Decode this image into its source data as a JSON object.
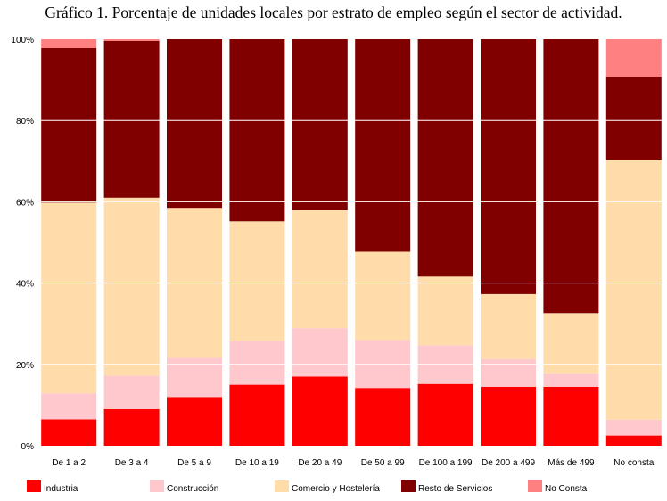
{
  "chart_data": {
    "type": "bar",
    "stacked": true,
    "percent": true,
    "title": "Gráfico 1. Porcentaje de unidades locales por estrato de empleo según el sector de actividad.",
    "categories": [
      "De 1 a 2",
      "De 3 a 4",
      "De 5 a 9",
      "De 10 a 19",
      "De 20 a 49",
      "De 50 a 99",
      "De 100 a 199",
      "De 200 a 499",
      "Más de 499",
      "No consta"
    ],
    "yticks": [
      "0%",
      "20%",
      "40%",
      "60%",
      "80%",
      "100%"
    ],
    "ylim": [
      0,
      100
    ],
    "grid": true,
    "legend_position": "bottom",
    "series": [
      {
        "name": "Industria",
        "color": "#ff0000",
        "values": [
          6.5,
          9,
          12,
          15,
          17,
          14.2,
          15.2,
          14.5,
          14.5,
          2.5
        ]
      },
      {
        "name": "Construcción",
        "color": "#ffc8cc",
        "values": [
          6.4,
          8.2,
          9.6,
          10.8,
          11.9,
          11.8,
          9.5,
          6.8,
          3.3,
          3.9
        ]
      },
      {
        "name": "Comercio y Hostelería",
        "color": "#ffdcaa",
        "values": [
          46.9,
          43.8,
          36.9,
          29.4,
          29,
          21.7,
          16.9,
          16,
          14.8,
          64
        ]
      },
      {
        "name": "Resto de Servicios",
        "color": "#800000",
        "values": [
          38,
          38.6,
          41.5,
          44.8,
          42.1,
          52.3,
          58.4,
          62.7,
          67.4,
          20.4
        ]
      },
      {
        "name": "No Consta",
        "color": "#ff8080",
        "values": [
          2.2,
          0.4,
          0,
          0,
          0,
          0,
          0,
          0,
          0,
          9.2
        ]
      }
    ]
  }
}
